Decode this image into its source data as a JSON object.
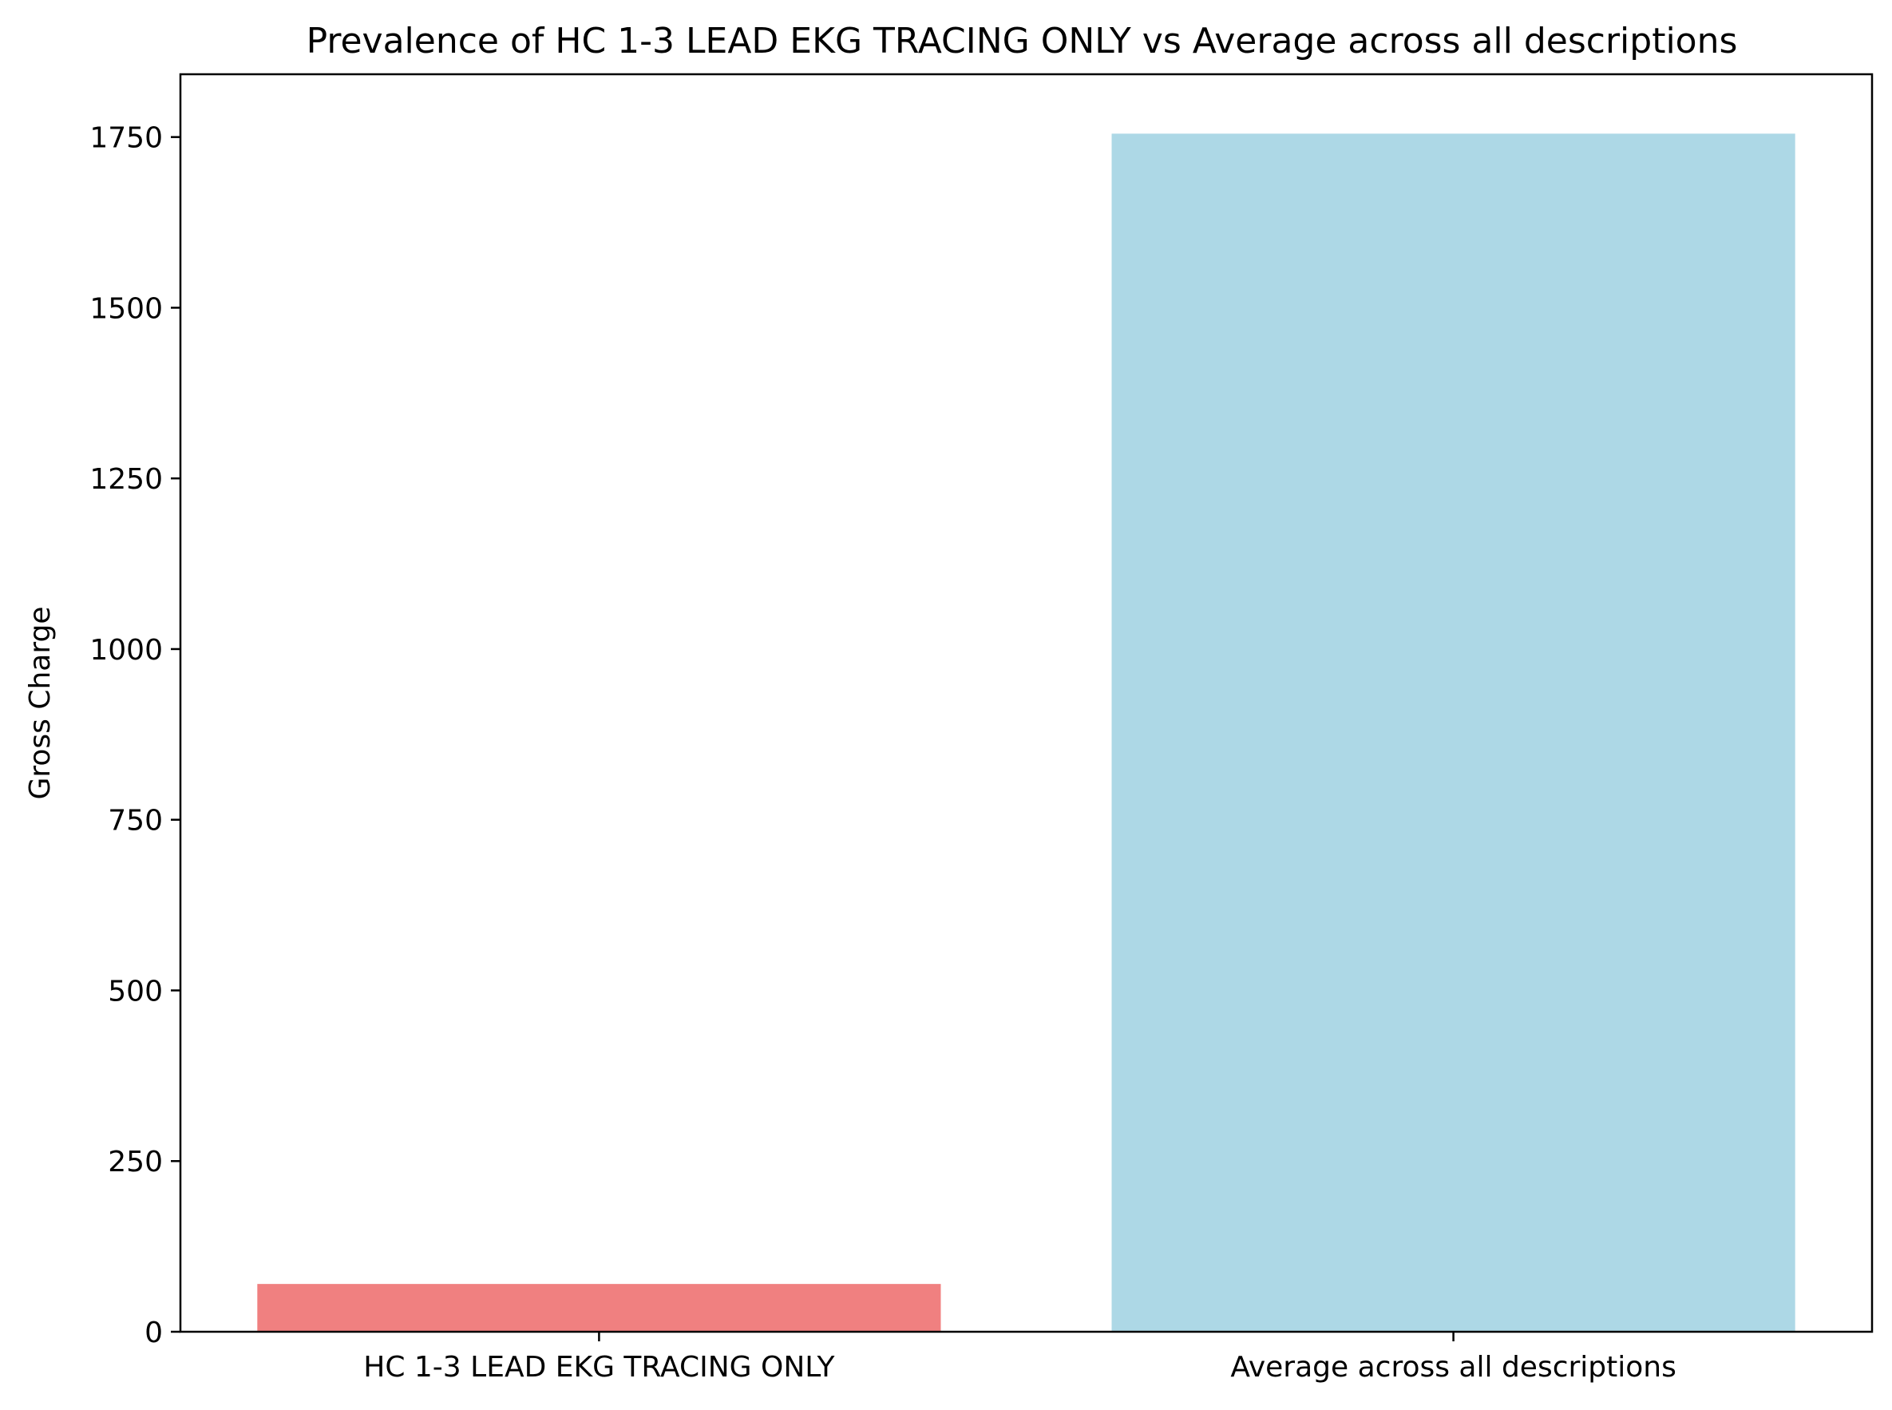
{
  "chart_data": {
    "type": "bar",
    "title": "Prevalence of HC 1-3 LEAD EKG TRACING ONLY vs Average across all descriptions",
    "xlabel": "",
    "ylabel": "Gross Charge",
    "categories": [
      "HC 1-3 LEAD EKG TRACING ONLY",
      "Average across all descriptions"
    ],
    "values": [
      70,
      1755
    ],
    "colors": [
      "#f08080",
      "#add8e6"
    ],
    "ylim": [
      0,
      1842
    ],
    "yticks": [
      0,
      250,
      500,
      750,
      1000,
      1250,
      1500,
      1750
    ],
    "grid": false,
    "legend": "none"
  }
}
